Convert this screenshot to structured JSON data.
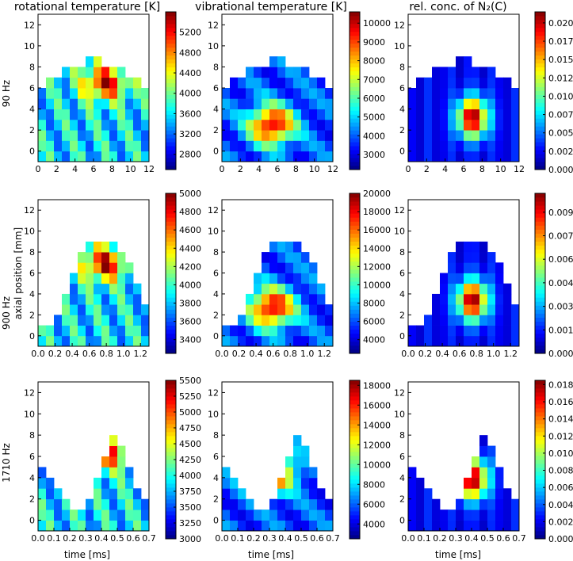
{
  "chart_data": {
    "type": "heatmap",
    "column_titles": [
      "rotational temperature [K]",
      "vibrational temperature [K]",
      "rel. conc. of N₂(C)"
    ],
    "row_labels": [
      "90 Hz",
      "900 Hz",
      "1710 Hz"
    ],
    "ylabel_middle": "axial position [mm]",
    "xlabel_bottom": "time [ms]",
    "yticks": [
      "0",
      "2",
      "4",
      "6",
      "8",
      "10",
      "12"
    ],
    "ylim": [
      -1,
      13
    ],
    "rows": [
      {
        "xticks": [
          "0",
          "2",
          "4",
          "6",
          "8",
          "10",
          "12"
        ],
        "xlim": [
          0,
          12
        ]
      },
      {
        "xticks": [
          "0.0",
          "0.2",
          "0.4",
          "0.6",
          "0.8",
          "1.0",
          "1.2"
        ],
        "xlim": [
          0,
          1.3
        ]
      },
      {
        "xticks": [
          "0.0",
          "0.1",
          "0.2",
          "0.3",
          "0.4",
          "0.5",
          "0.6",
          "0.7"
        ],
        "xlim": [
          0,
          0.7
        ]
      }
    ],
    "colorbars": [
      {
        "ticks": [
          "5200",
          "4800",
          "4400",
          "4000",
          "3600",
          "3200",
          "2800"
        ],
        "range": [
          2500,
          5600
        ]
      },
      {
        "ticks": [
          "10000",
          "9000",
          "8000",
          "7000",
          "6000",
          "5000",
          "4000",
          "3000"
        ],
        "range": [
          2200,
          10600
        ]
      },
      {
        "ticks": [
          "0.0200",
          "0.0175",
          "0.0150",
          "0.0125",
          "0.0100",
          "0.0075",
          "0.0050",
          "0.0025",
          "0.0000"
        ],
        "range": [
          0,
          0.0215
        ]
      },
      {
        "ticks": [
          "5000",
          "4800",
          "4600",
          "4400",
          "4200",
          "4000",
          "3800",
          "3600",
          "3400"
        ],
        "range": [
          3250,
          5000
        ]
      },
      {
        "ticks": [
          "20000",
          "18000",
          "16000",
          "14000",
          "12000",
          "10000",
          "8000",
          "6000",
          "4000"
        ],
        "range": [
          2500,
          20000
        ]
      },
      {
        "ticks": [
          "0.0090",
          "0.0075",
          "0.0060",
          "0.0045",
          "0.0030",
          "0.0015",
          "0.0000"
        ],
        "range": [
          0,
          0.0102
        ]
      },
      {
        "ticks": [
          "5500",
          "5250",
          "5000",
          "4750",
          "4500",
          "4250",
          "4000",
          "3750",
          "3500",
          "3250",
          "3000"
        ],
        "range": [
          3000,
          5500
        ]
      },
      {
        "ticks": [
          "18000",
          "16000",
          "14000",
          "12000",
          "10000",
          "8000",
          "6000",
          "4000"
        ],
        "range": [
          2500,
          18500
        ]
      },
      {
        "ticks": [
          "0.018",
          "0.016",
          "0.014",
          "0.012",
          "0.010",
          "0.008",
          "0.006",
          "0.004",
          "0.002",
          "0.000"
        ],
        "range": [
          0,
          0.0185
        ]
      }
    ]
  }
}
